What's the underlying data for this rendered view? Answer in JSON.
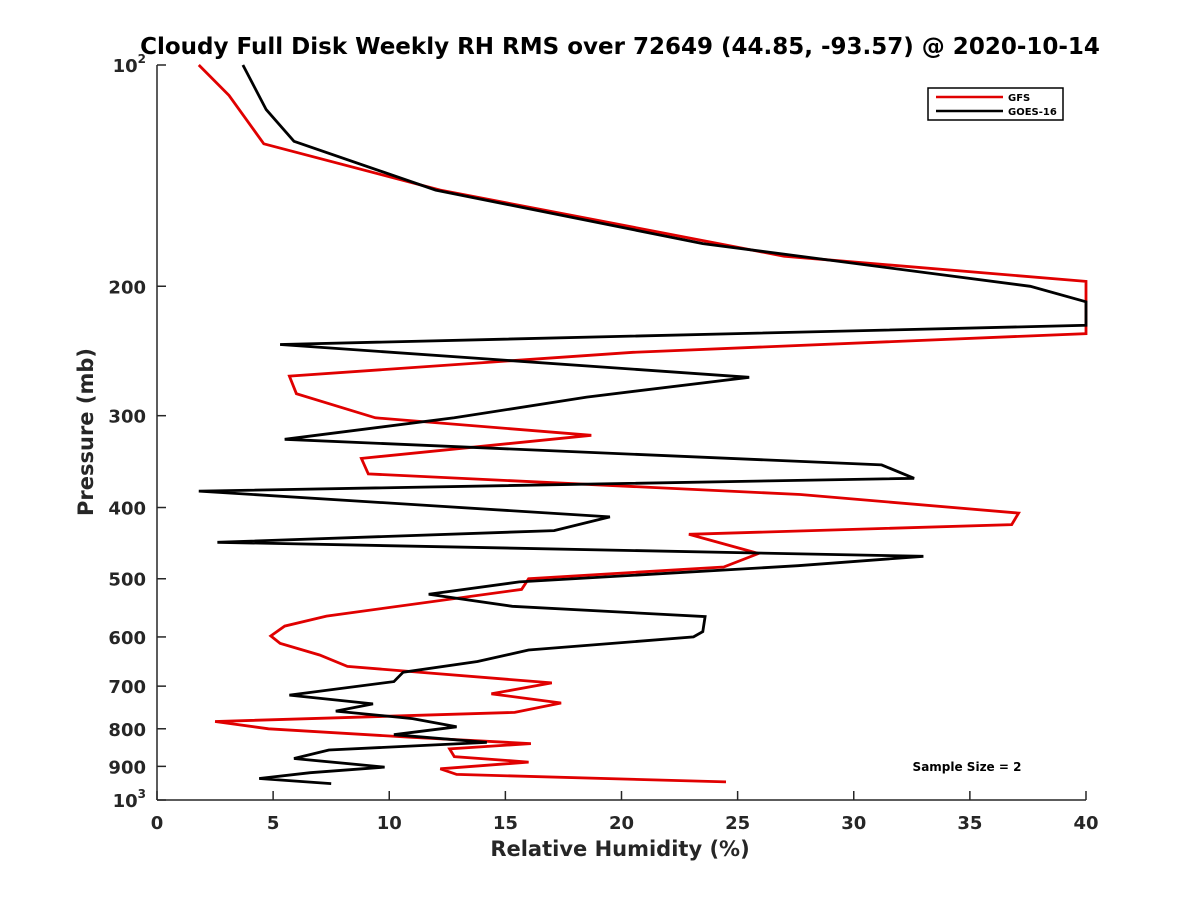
{
  "colors": {
    "gfs": "#e00000",
    "goes": "#000000",
    "axis": "#262626"
  },
  "chart_data": {
    "type": "line",
    "title": "Cloudy Full Disk Weekly RH RMS over 72649 (44.85, -93.57) @ 2020-10-14",
    "xlabel": "Relative Humidity (%)",
    "ylabel": "Pressure (mb)",
    "xlim": [
      0,
      40
    ],
    "ylim": [
      100,
      1000
    ],
    "yscale": "log",
    "yreversed": false,
    "xticks": [
      "0",
      "5",
      "10",
      "15",
      "20",
      "25",
      "30",
      "35",
      "40"
    ],
    "yticks": [
      {
        "value": 100,
        "base": "10",
        "exp": "2"
      },
      {
        "value": 200,
        "label": "200"
      },
      {
        "value": 300,
        "label": "300"
      },
      {
        "value": 400,
        "label": "400"
      },
      {
        "value": 500,
        "label": "500"
      },
      {
        "value": 600,
        "label": "600"
      },
      {
        "value": 700,
        "label": "700"
      },
      {
        "value": 800,
        "label": "800"
      },
      {
        "value": 900,
        "label": "900"
      },
      {
        "value": 1000,
        "base": "10",
        "exp": "3"
      }
    ],
    "legend": {
      "position": "top-right",
      "entries": [
        "GFS",
        "GOES-16"
      ]
    },
    "annotation": "Sample Size = 2",
    "series": [
      {
        "name": "GFS",
        "color": "#e00000",
        "points": [
          [
            1.8,
            100
          ],
          [
            3.1,
            110
          ],
          [
            4.6,
            128
          ],
          [
            12.2,
            148
          ],
          [
            27.0,
            182
          ],
          [
            40.0,
            197
          ],
          [
            40.0,
            232
          ],
          [
            20.5,
            246
          ],
          [
            5.7,
            265
          ],
          [
            6.0,
            280
          ],
          [
            9.4,
            302
          ],
          [
            18.7,
            319
          ],
          [
            8.8,
            343
          ],
          [
            9.1,
            360
          ],
          [
            27.7,
            384
          ],
          [
            37.1,
            407
          ],
          [
            36.8,
            422
          ],
          [
            22.9,
            435
          ],
          [
            23.7,
            442
          ],
          [
            25.9,
            462
          ],
          [
            24.4,
            482
          ],
          [
            16.0,
            500
          ],
          [
            15.7,
            517
          ],
          [
            7.3,
            562
          ],
          [
            5.5,
            580
          ],
          [
            4.9,
            598
          ],
          [
            5.3,
            612
          ],
          [
            7.0,
            635
          ],
          [
            8.2,
            658
          ],
          [
            17.0,
            693
          ],
          [
            14.4,
            717
          ],
          [
            17.4,
            738
          ],
          [
            15.4,
            760
          ],
          [
            2.5,
            782
          ],
          [
            4.8,
            800
          ],
          [
            11.0,
            822
          ],
          [
            16.1,
            838
          ],
          [
            12.6,
            852
          ],
          [
            12.8,
            873
          ],
          [
            16.0,
            888
          ],
          [
            12.2,
            907
          ],
          [
            12.9,
            923
          ],
          [
            24.5,
            945
          ]
        ]
      },
      {
        "name": "GOES-16",
        "color": "#000000",
        "points": [
          [
            3.7,
            100
          ],
          [
            4.7,
            115
          ],
          [
            5.9,
            127
          ],
          [
            12.0,
            148
          ],
          [
            23.5,
            175
          ],
          [
            37.6,
            200
          ],
          [
            40.0,
            210
          ],
          [
            40.0,
            226
          ],
          [
            5.3,
            240
          ],
          [
            25.5,
            266
          ],
          [
            18.5,
            283
          ],
          [
            12.8,
            302
          ],
          [
            5.5,
            323
          ],
          [
            31.2,
            350
          ],
          [
            32.6,
            365
          ],
          [
            1.8,
            380
          ],
          [
            19.5,
            412
          ],
          [
            17.1,
            430
          ],
          [
            2.6,
            446
          ],
          [
            33.0,
            466
          ],
          [
            27.6,
            480
          ],
          [
            15.6,
            505
          ],
          [
            11.7,
            525
          ],
          [
            15.3,
            545
          ],
          [
            23.6,
            563
          ],
          [
            23.5,
            590
          ],
          [
            23.1,
            600
          ],
          [
            16.0,
            625
          ],
          [
            13.8,
            648
          ],
          [
            10.6,
            670
          ],
          [
            10.2,
            690
          ],
          [
            5.7,
            720
          ],
          [
            9.3,
            740
          ],
          [
            7.7,
            757
          ],
          [
            11.0,
            775
          ],
          [
            12.9,
            795
          ],
          [
            10.2,
            815
          ],
          [
            14.2,
            835
          ],
          [
            7.4,
            855
          ],
          [
            5.9,
            878
          ],
          [
            9.8,
            902
          ],
          [
            6.6,
            918
          ],
          [
            4.4,
            935
          ],
          [
            7.5,
            950
          ]
        ]
      }
    ]
  }
}
